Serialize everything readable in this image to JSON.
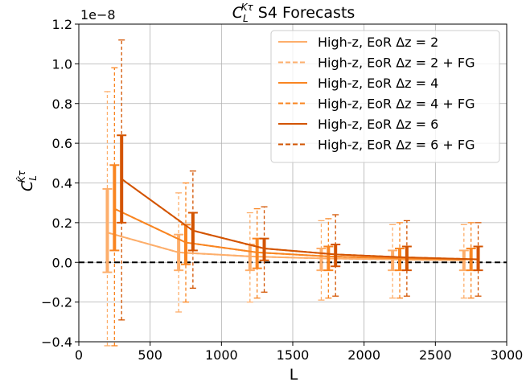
{
  "chart_data": {
    "type": "line",
    "title_prefix": "C",
    "title_sub": "L",
    "title_sup": "Kτ",
    "title_suffix": " S4 Forecasts",
    "xlabel": "L",
    "ylabel_main": "C",
    "ylabel_sub": "L",
    "ylabel_sup": "K̂τ",
    "scale_note": "1e−8",
    "xlim": [
      0,
      3000
    ],
    "ylim": [
      -0.4,
      1.2
    ],
    "xticks": [
      "0",
      "500",
      "1000",
      "1500",
      "2000",
      "2500",
      "3000"
    ],
    "yticks": [
      "−0.4",
      "−0.2",
      "0.0",
      "0.2",
      "0.4",
      "0.6",
      "0.8",
      "1.0",
      "1.2"
    ],
    "grid": true,
    "legend_position": "top-right",
    "zero_line": 0.0,
    "series": [
      {
        "name": "High-z, EoR Δz = 2",
        "style": "solid",
        "color": "#fdae6b",
        "x": [
          200,
          700,
          1200,
          1700,
          2200,
          2700
        ],
        "y": [
          0.15,
          0.05,
          0.03,
          0.02,
          0.015,
          0.01
        ],
        "err_low": [
          -0.05,
          -0.04,
          -0.04,
          -0.04,
          -0.04,
          -0.04
        ],
        "err_high": [
          0.37,
          0.14,
          0.09,
          0.07,
          0.06,
          0.06
        ]
      },
      {
        "name": "High-z, EoR Δz = 2 + FG",
        "style": "dashed",
        "color": "#fdae6b",
        "x": [
          200,
          700,
          1200,
          1700,
          2200,
          2700
        ],
        "y": [
          0.15,
          0.05,
          0.03,
          0.02,
          0.015,
          0.01
        ],
        "err_low": [
          -0.42,
          -0.25,
          -0.2,
          -0.19,
          -0.18,
          -0.18
        ],
        "err_high": [
          0.86,
          0.35,
          0.25,
          0.21,
          0.19,
          0.19
        ]
      },
      {
        "name": "High-z, EoR Δz = 4",
        "style": "solid",
        "color": "#f98521",
        "x": [
          250,
          750,
          1250,
          1750,
          2250,
          2750
        ],
        "y": [
          0.27,
          0.1,
          0.05,
          0.03,
          0.02,
          0.015
        ],
        "err_low": [
          0.06,
          -0.01,
          -0.03,
          -0.04,
          -0.04,
          -0.04
        ],
        "err_high": [
          0.49,
          0.19,
          0.12,
          0.08,
          0.07,
          0.07
        ]
      },
      {
        "name": "High-z, EoR Δz = 4 + FG",
        "style": "dashed",
        "color": "#f98521",
        "x": [
          250,
          750,
          1250,
          1750,
          2250,
          2750
        ],
        "y": [
          0.27,
          0.1,
          0.05,
          0.03,
          0.02,
          0.015
        ],
        "err_low": [
          -0.42,
          -0.2,
          -0.18,
          -0.18,
          -0.18,
          -0.18
        ],
        "err_high": [
          0.98,
          0.4,
          0.27,
          0.22,
          0.2,
          0.2
        ]
      },
      {
        "name": "High-z, EoR Δz = 6",
        "style": "solid",
        "color": "#d35400",
        "x": [
          300,
          800,
          1300,
          1800,
          2300,
          2800
        ],
        "y": [
          0.42,
          0.16,
          0.07,
          0.04,
          0.025,
          0.015
        ],
        "err_low": [
          0.2,
          0.06,
          0.01,
          -0.02,
          -0.04,
          -0.04
        ],
        "err_high": [
          0.64,
          0.25,
          0.12,
          0.09,
          0.08,
          0.08
        ]
      },
      {
        "name": "High-z, EoR Δz = 6 + FG",
        "style": "dashed",
        "color": "#d35400",
        "x": [
          300,
          800,
          1300,
          1800,
          2300,
          2800
        ],
        "y": [
          0.42,
          0.16,
          0.07,
          0.04,
          0.025,
          0.015
        ],
        "err_low": [
          -0.29,
          -0.13,
          -0.15,
          -0.17,
          -0.17,
          -0.17
        ],
        "err_high": [
          1.12,
          0.46,
          0.28,
          0.24,
          0.21,
          0.2
        ]
      }
    ]
  }
}
